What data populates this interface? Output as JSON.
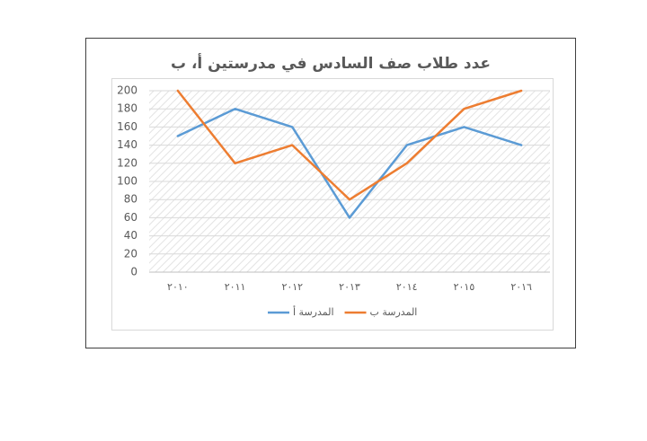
{
  "chart_data": {
    "type": "line",
    "title": "عدد طلاب صف السادس في مدرستين أ، ب",
    "categories": [
      "٢٠١٠",
      "٢٠١١",
      "٢٠١٢",
      "٢٠١٣",
      "٢٠١٤",
      "٢٠١٥",
      "٢٠١٦"
    ],
    "series": [
      {
        "name": "المدرسة أ",
        "color": "#5b9bd5",
        "values": [
          150,
          180,
          160,
          60,
          140,
          160,
          140
        ]
      },
      {
        "name": "المدرسة ب",
        "color": "#ed7d31",
        "values": [
          200,
          120,
          140,
          80,
          120,
          180,
          200
        ]
      }
    ],
    "ylim": [
      0,
      200
    ],
    "yticks": [
      0,
      20,
      40,
      60,
      80,
      100,
      120,
      140,
      160,
      180,
      200
    ],
    "grid": true,
    "legend": "bottom"
  }
}
